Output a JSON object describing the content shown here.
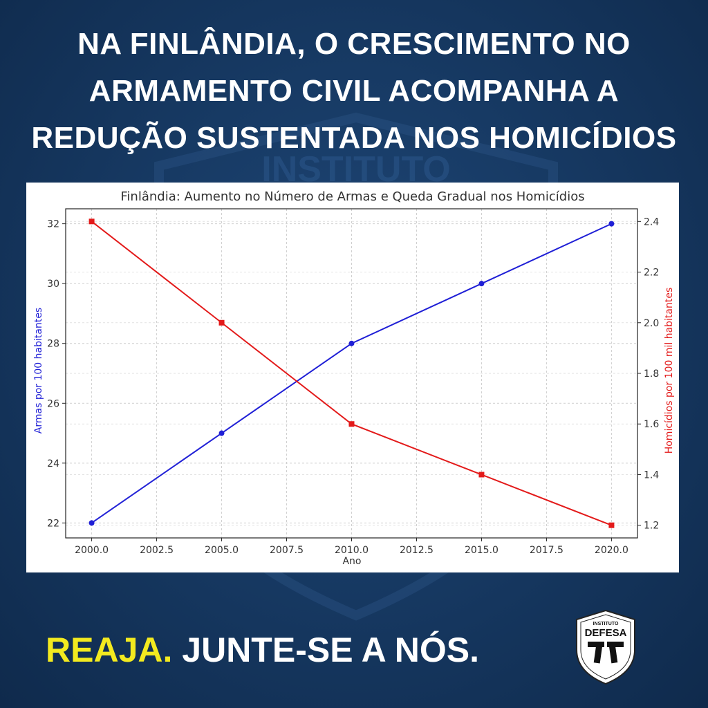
{
  "headline": {
    "line1": "NA FINLÂNDIA, O CRESCIMENTO NO",
    "line2": "ARMAMENTO CIVIL ACOMPANHA A",
    "line3": "REDUÇÃO SUSTENTADA NOS HOMICÍDIOS"
  },
  "background": {
    "watermark_text": "INSTITUTO",
    "color": "#173a64"
  },
  "chart_data": {
    "type": "line",
    "title": "Finlândia: Aumento no Número de Armas e Queda Gradual nos Homicídios",
    "xlabel": "Ano",
    "ylabel": "Armas por 100 habitantes",
    "y2label": "Homicídios por 100 mil habitantes",
    "x": [
      2000,
      2005,
      2010,
      2015,
      2020
    ],
    "xlim": [
      1999,
      2021
    ],
    "xticks": [
      "2000.0",
      "2002.5",
      "2005.0",
      "2007.5",
      "2010.0",
      "2012.5",
      "2015.0",
      "2017.5",
      "2020.0"
    ],
    "ylim": [
      21.5,
      32.5
    ],
    "yticks": [
      "22",
      "24",
      "26",
      "28",
      "30",
      "32"
    ],
    "y2lim": [
      1.15,
      2.45
    ],
    "y2ticks": [
      "1.2",
      "1.4",
      "1.6",
      "1.8",
      "2.0",
      "2.2",
      "2.4"
    ],
    "grid": true,
    "series": [
      {
        "axis": "left",
        "values": [
          22,
          25,
          28,
          30,
          32
        ],
        "color": "#1f1fd6",
        "marker": "circle"
      },
      {
        "axis": "right",
        "values": [
          2.4,
          2.0,
          1.6,
          1.4,
          1.2
        ],
        "color": "#e31a1a",
        "marker": "square"
      }
    ]
  },
  "cta": {
    "react": "REAJA.",
    "join": "JUNTE-SE A NÓS."
  },
  "logo": {
    "top_text": "INSTITUTO",
    "name": "DEFESA",
    "icon": "pistols-shield-icon"
  }
}
